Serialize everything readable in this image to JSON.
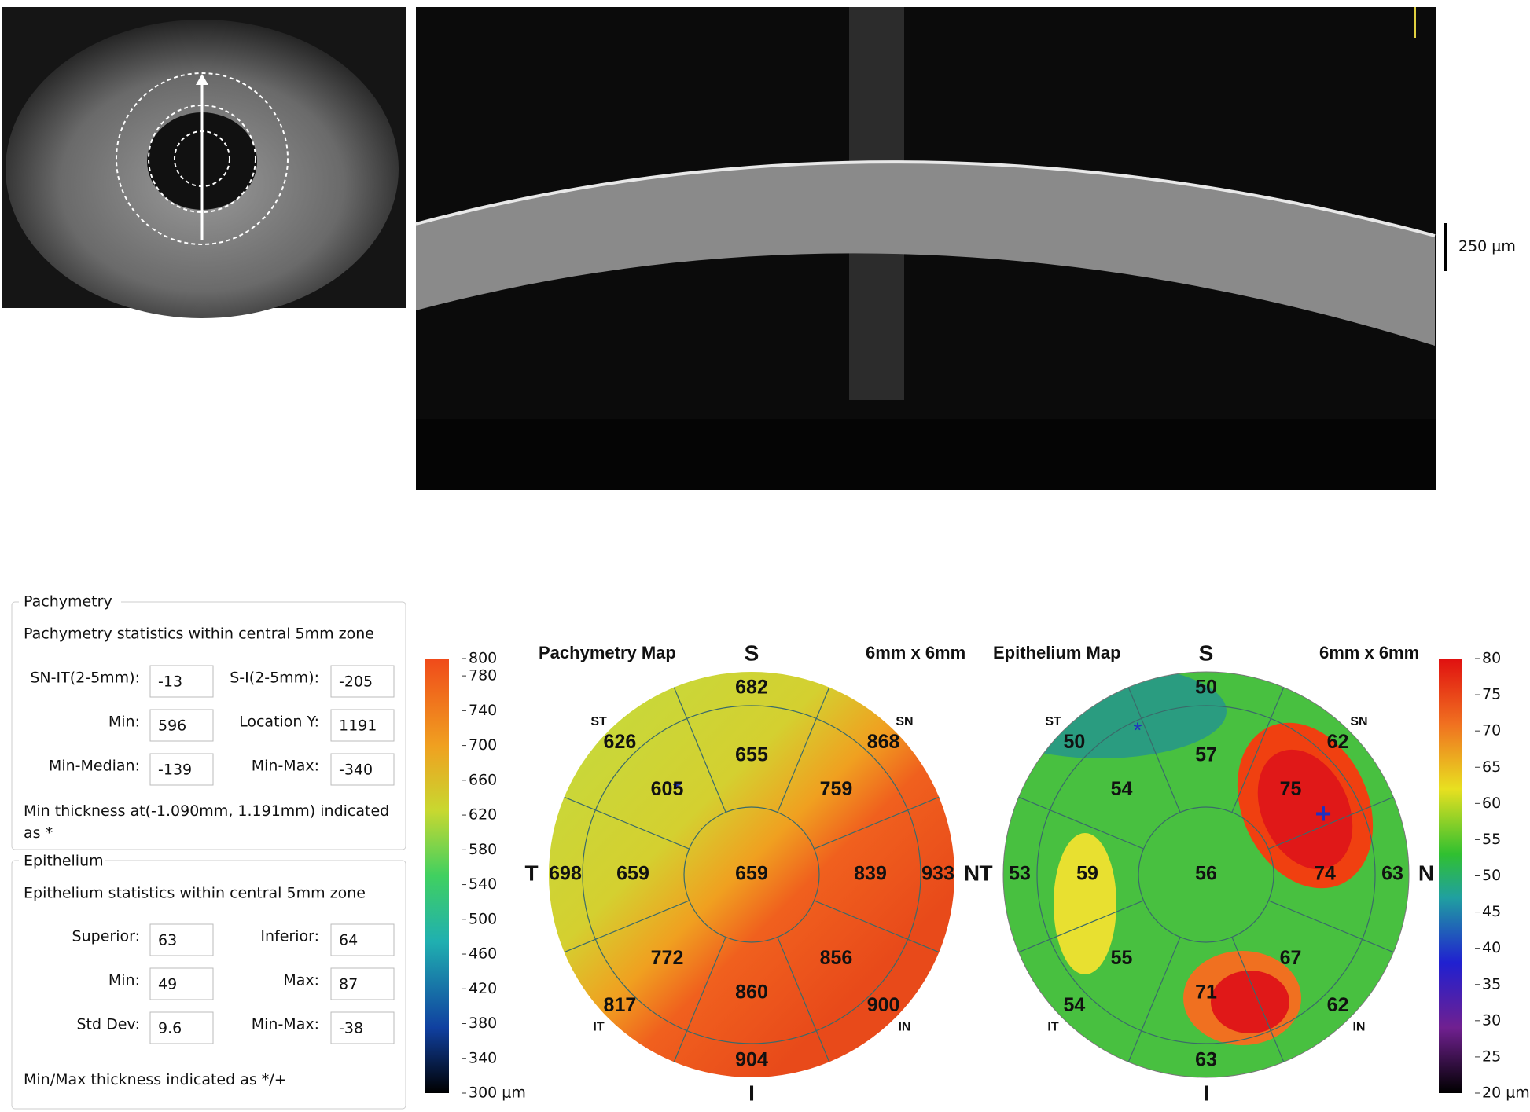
{
  "oct": {
    "scale_label": "250 μm"
  },
  "pachymetry_panel": {
    "title": "Pachymetry",
    "subtitle": "Pachymetry statistics within central 5mm zone",
    "fields": [
      {
        "label": "SN-IT(2-5mm):",
        "value": -13
      },
      {
        "label": "S-I(2-5mm):",
        "value": -205
      },
      {
        "label": "Min:",
        "value": 596
      },
      {
        "label": "Location Y:",
        "value": 1191
      },
      {
        "label": "Min-Median:",
        "value": -139
      },
      {
        "label": "Min-Max:",
        "value": -340
      }
    ],
    "note": "Min thickness at(-1.090mm, 1.191mm) indicated as *"
  },
  "epithelium_panel": {
    "title": "Epithelium",
    "subtitle": "Epithelium statistics within central 5mm zone",
    "fields": [
      {
        "label": "Superior:",
        "value": 63
      },
      {
        "label": "Inferior:",
        "value": 64
      },
      {
        "label": "Min:",
        "value": 49
      },
      {
        "label": "Max:",
        "value": 87
      },
      {
        "label": "Std Dev:",
        "value": 9.6
      },
      {
        "label": "Min-Max:",
        "value": -38
      }
    ],
    "note": "Min/Max thickness indicated as */+"
  },
  "pachymetry_map": {
    "title": "Pachymetry Map",
    "size": "6mm x 6mm",
    "sectors": [
      "S",
      "SN",
      "N",
      "IN",
      "I",
      "IT",
      "T",
      "ST"
    ],
    "center": 659,
    "inner": [
      655,
      759,
      839,
      856,
      860,
      772,
      659,
      605
    ],
    "outer": [
      682,
      868,
      933,
      900,
      904,
      817,
      698,
      626
    ],
    "colorbar": {
      "range": [
        300,
        800
      ],
      "ticks": [
        800,
        780,
        740,
        700,
        660,
        620,
        580,
        540,
        500,
        460,
        420,
        380,
        340,
        {
          "value": 300,
          "label": "300 μm"
        }
      ]
    }
  },
  "epithelium_map": {
    "title": "Epithelium Map",
    "size": "6mm x 6mm",
    "sectors": [
      "S",
      "SN",
      "N",
      "IN",
      "I",
      "IT",
      "T",
      "ST"
    ],
    "center": 56,
    "inner": [
      57,
      75,
      74,
      67,
      71,
      55,
      59,
      54
    ],
    "outer": [
      50,
      62,
      63,
      62,
      63,
      54,
      53,
      50
    ],
    "colorbar": {
      "range": [
        20,
        80
      ],
      "ticks": [
        80,
        75,
        70,
        65,
        60,
        55,
        50,
        45,
        40,
        35,
        30,
        25,
        {
          "value": 20,
          "label": "20 μm"
        }
      ]
    }
  }
}
